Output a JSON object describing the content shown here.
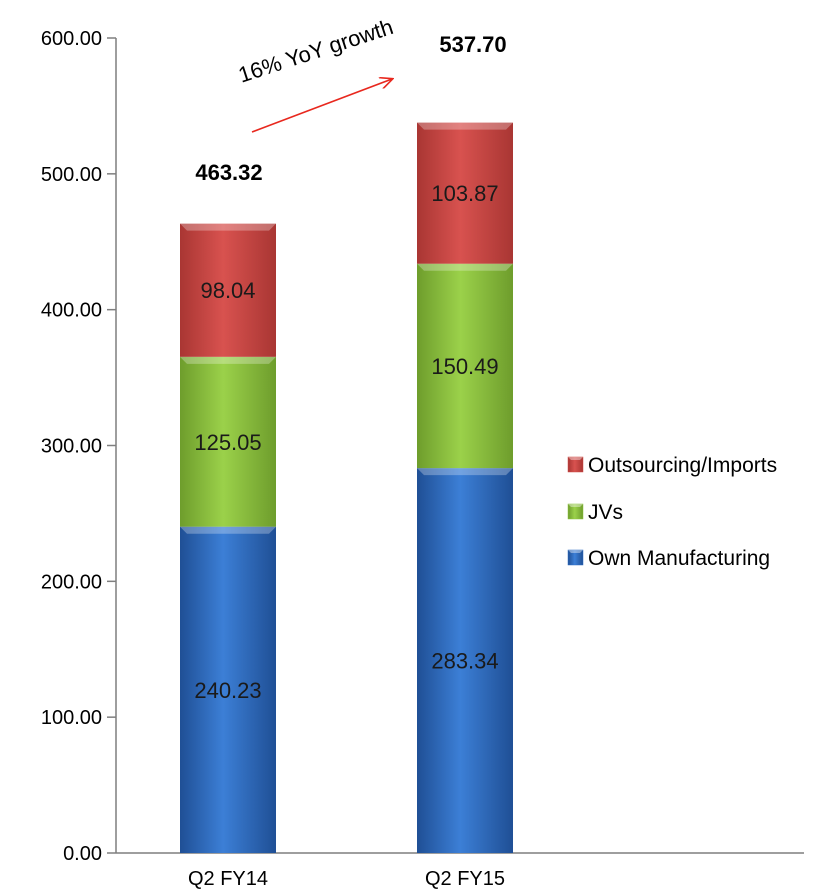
{
  "chart_data": {
    "type": "bar",
    "stacked": true,
    "categories": [
      "Q2 FY14",
      "Q2 FY15"
    ],
    "series": [
      {
        "name": "Own Manufacturing",
        "values": [
          240.23,
          283.34
        ],
        "labels": [
          "240.23",
          "283.34"
        ],
        "color": "#2e6fc6"
      },
      {
        "name": "JVs",
        "values": [
          125.05,
          150.49
        ],
        "labels": [
          "125.05",
          "150.49"
        ],
        "color": "#8ec63f"
      },
      {
        "name": "Outsourcing/Imports",
        "values": [
          98.04,
          103.87
        ],
        "labels": [
          "98.04",
          "103.87"
        ],
        "color": "#cf4a47"
      }
    ],
    "totals": [
      "463.32",
      "537.70"
    ],
    "annotation": "16% YoY growth",
    "annotation_color": "#e8281e",
    "ylim": [
      0,
      600
    ],
    "yticks": [
      "0.00",
      "100.00",
      "200.00",
      "300.00",
      "400.00",
      "500.00",
      "600.00"
    ],
    "legend_position": "right",
    "legend_order": [
      "Outsourcing/Imports",
      "JVs",
      "Own Manufacturing"
    ],
    "grid": false
  }
}
